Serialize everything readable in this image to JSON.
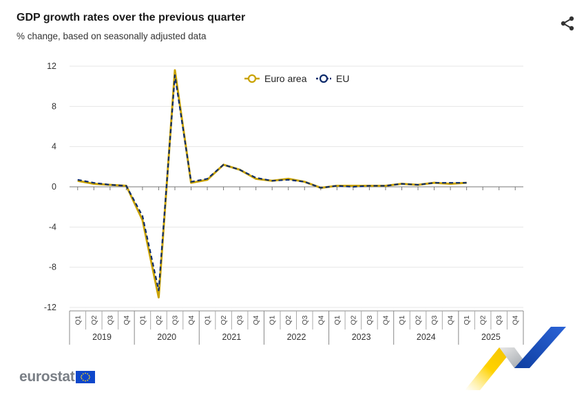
{
  "header": {
    "title": "GDP growth rates over the previous quarter",
    "subtitle": "% change, based on seasonally adjusted data"
  },
  "icons": {
    "share": "share-icon"
  },
  "logo": {
    "text": "eurostat"
  },
  "colors": {
    "euro_area": "#c9a200",
    "eu": "#0d2b6b",
    "grid": "#e6e6e6",
    "axis": "#999999"
  },
  "chart_data": {
    "type": "line",
    "title": "GDP growth rates over the previous quarter",
    "subtitle": "% change, based on seasonally adjusted data",
    "ylim": [
      -12,
      12
    ],
    "yticks": [
      12,
      8,
      4,
      0,
      -4,
      -8,
      -12
    ],
    "grid": true,
    "legend_position": "top-center",
    "years": [
      "2019",
      "2020",
      "2021",
      "2022",
      "2023",
      "2024",
      "2025"
    ],
    "quarters": [
      "Q1",
      "Q2",
      "Q3",
      "Q4"
    ],
    "series": [
      {
        "name": "Euro area",
        "style": "solid-circle",
        "values": [
          0.6,
          0.3,
          0.2,
          0.1,
          -3.3,
          -11.0,
          11.6,
          0.4,
          0.7,
          2.2,
          1.7,
          0.8,
          0.6,
          0.8,
          0.5,
          -0.1,
          0.1,
          0.1,
          0.1,
          0.1,
          0.3,
          0.2,
          0.4,
          0.3,
          0.4
        ]
      },
      {
        "name": "EU",
        "style": "dashed-circle",
        "values": [
          0.7,
          0.4,
          0.2,
          0.1,
          -2.9,
          -10.3,
          11.1,
          0.5,
          0.8,
          2.2,
          1.7,
          0.9,
          0.6,
          0.7,
          0.5,
          -0.1,
          0.1,
          0.0,
          0.1,
          0.1,
          0.3,
          0.2,
          0.4,
          0.4,
          0.4
        ]
      }
    ]
  }
}
